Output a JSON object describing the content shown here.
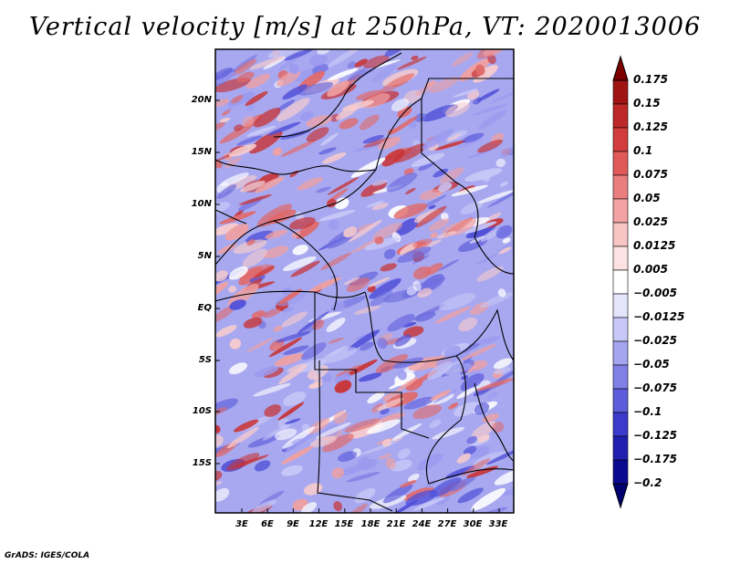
{
  "title": "Vertical velocity [m/s] at 250hPa, VT: 2020013006",
  "map": {
    "lat_labels": [
      "20N",
      "15N",
      "10N",
      "5N",
      "EQ",
      "5S",
      "10S",
      "15S"
    ],
    "lon_labels": [
      "3E",
      "6E",
      "9E",
      "12E",
      "15E",
      "18E",
      "21E",
      "24E",
      "27E",
      "30E",
      "33E"
    ],
    "field_colors": {
      "neg": "#3c3cdc",
      "neutral": "#ffffff",
      "pos": "#dc3c3c"
    }
  },
  "colorbar": {
    "labels": [
      "0.175",
      "0.15",
      "0.125",
      "0.1",
      "0.075",
      "0.05",
      "0.025",
      "0.0125",
      "0.005",
      "−0.005",
      "−0.0125",
      "−0.025",
      "−0.05",
      "−0.075",
      "−0.1",
      "−0.125",
      "−0.175",
      "−0.2"
    ],
    "colors": [
      "#7d0000",
      "#a01414",
      "#be2828",
      "#d23c3c",
      "#e05a5a",
      "#ea7e7e",
      "#f2a2a2",
      "#f8c4c4",
      "#fce2e2",
      "#ffffff",
      "#e4e4fc",
      "#c8c8f8",
      "#a4a4f0",
      "#8080e6",
      "#5c5cdc",
      "#3a3acc",
      "#2020b0",
      "#0a0a90",
      "#000070"
    ]
  },
  "credit": "GrADS: IGES/COLA"
}
